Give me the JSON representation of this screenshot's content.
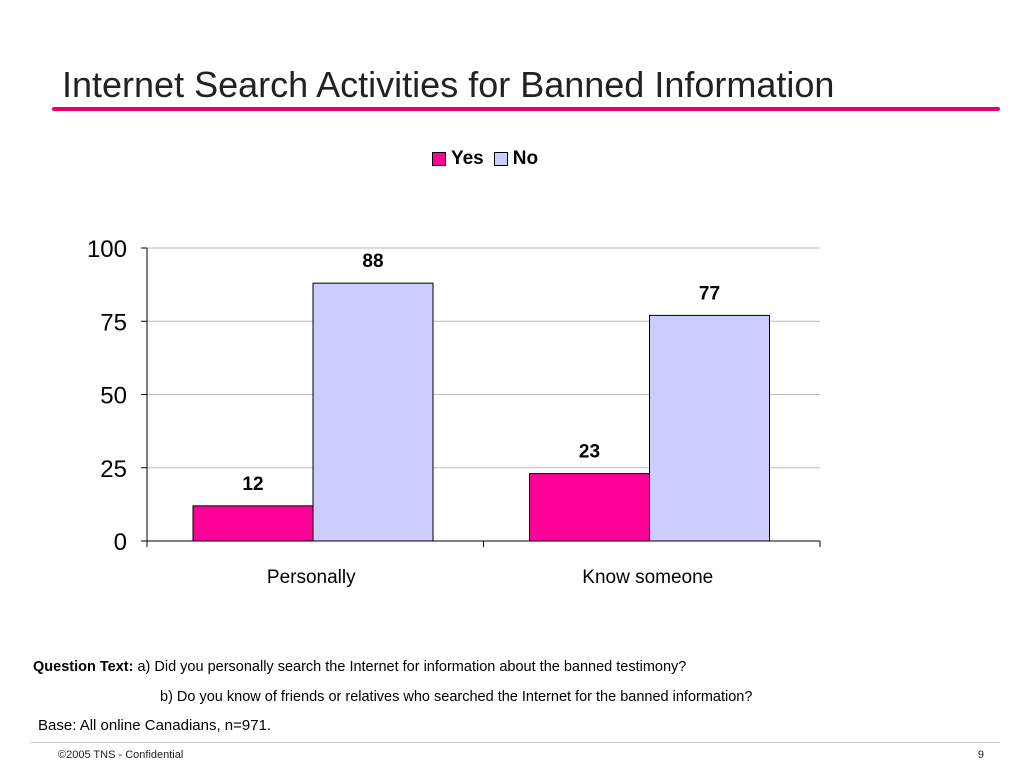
{
  "slide": {
    "title": "Internet Search Activities for Banned Information",
    "accent_color": "#e6006e"
  },
  "chart_data": {
    "type": "bar",
    "categories": [
      "Personally",
      "Know someone"
    ],
    "series": [
      {
        "name": "Yes",
        "values": [
          12,
          23
        ],
        "color": "#ff0099"
      },
      {
        "name": "No",
        "values": [
          88,
          77
        ],
        "color": "#ccccff"
      }
    ],
    "yticks": [
      0,
      25,
      50,
      75,
      100
    ],
    "ylim": [
      0,
      100
    ],
    "grid": true,
    "legend_position": "top-center",
    "data_labels": true
  },
  "notes": {
    "question_label": "Question Text:",
    "question_a": "a) Did you personally search the Internet for information about the banned testimony?",
    "question_b": "b) Do you know of friends or relatives who searched the Internet for the banned information?",
    "base": "Base: All online Canadians, n=971."
  },
  "footer": {
    "copyright": "©2005 TNS - Confidential",
    "page_number": "9"
  }
}
